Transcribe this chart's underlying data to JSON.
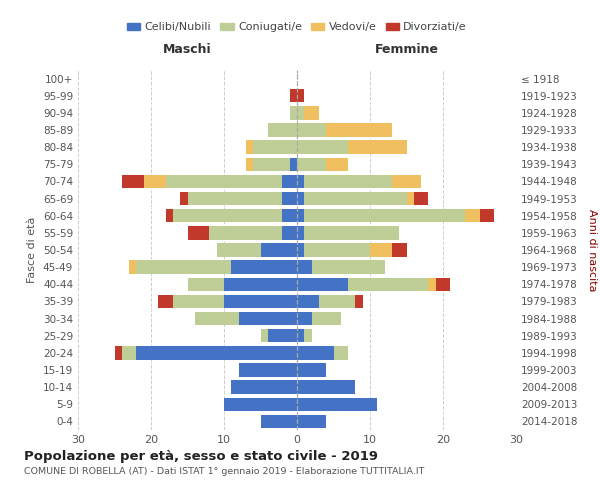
{
  "age_groups": [
    "0-4",
    "5-9",
    "10-14",
    "15-19",
    "20-24",
    "25-29",
    "30-34",
    "35-39",
    "40-44",
    "45-49",
    "50-54",
    "55-59",
    "60-64",
    "65-69",
    "70-74",
    "75-79",
    "80-84",
    "85-89",
    "90-94",
    "95-99",
    "100+"
  ],
  "birth_years": [
    "2014-2018",
    "2009-2013",
    "2004-2008",
    "1999-2003",
    "1994-1998",
    "1989-1993",
    "1984-1988",
    "1979-1983",
    "1974-1978",
    "1969-1973",
    "1964-1968",
    "1959-1963",
    "1954-1958",
    "1949-1953",
    "1944-1948",
    "1939-1943",
    "1934-1938",
    "1929-1933",
    "1924-1928",
    "1919-1923",
    "≤ 1918"
  ],
  "maschi": {
    "celibi": [
      5,
      10,
      9,
      8,
      22,
      4,
      8,
      10,
      10,
      9,
      5,
      2,
      2,
      2,
      2,
      1,
      0,
      0,
      0,
      0,
      0
    ],
    "coniugati": [
      0,
      0,
      0,
      0,
      2,
      1,
      6,
      7,
      5,
      13,
      6,
      10,
      15,
      13,
      16,
      5,
      6,
      4,
      1,
      0,
      0
    ],
    "vedovi": [
      0,
      0,
      0,
      0,
      0,
      0,
      0,
      0,
      0,
      1,
      0,
      0,
      0,
      0,
      3,
      1,
      1,
      0,
      0,
      0,
      0
    ],
    "divorziati": [
      0,
      0,
      0,
      0,
      1,
      0,
      0,
      2,
      0,
      0,
      0,
      3,
      1,
      1,
      3,
      0,
      0,
      0,
      0,
      1,
      0
    ]
  },
  "femmine": {
    "nubili": [
      4,
      11,
      8,
      4,
      5,
      1,
      2,
      3,
      7,
      2,
      1,
      1,
      1,
      1,
      1,
      0,
      0,
      0,
      0,
      0,
      0
    ],
    "coniugate": [
      0,
      0,
      0,
      0,
      2,
      1,
      4,
      5,
      11,
      10,
      9,
      13,
      22,
      14,
      12,
      4,
      7,
      4,
      1,
      0,
      0
    ],
    "vedove": [
      0,
      0,
      0,
      0,
      0,
      0,
      0,
      0,
      1,
      0,
      3,
      0,
      2,
      1,
      4,
      3,
      8,
      9,
      2,
      0,
      0
    ],
    "divorziate": [
      0,
      0,
      0,
      0,
      0,
      0,
      0,
      1,
      2,
      0,
      2,
      0,
      2,
      2,
      0,
      0,
      0,
      0,
      0,
      1,
      0
    ]
  },
  "colors": {
    "celibi_nubili": "#4472C4",
    "coniugati": "#BFCD96",
    "vedovi": "#F0C060",
    "divorziati": "#C0392B"
  },
  "xlim": 30,
  "title": "Popolazione per età, sesso e stato civile - 2019",
  "subtitle": "COMUNE DI ROBELLA (AT) - Dati ISTAT 1° gennaio 2019 - Elaborazione TUTTITALIA.IT",
  "ylabel_left": "Fasce di età",
  "ylabel_right": "Anni di nascita",
  "xlabel_left": "Maschi",
  "xlabel_right": "Femmine",
  "background_color": "#ffffff",
  "grid_color": "#cccccc"
}
